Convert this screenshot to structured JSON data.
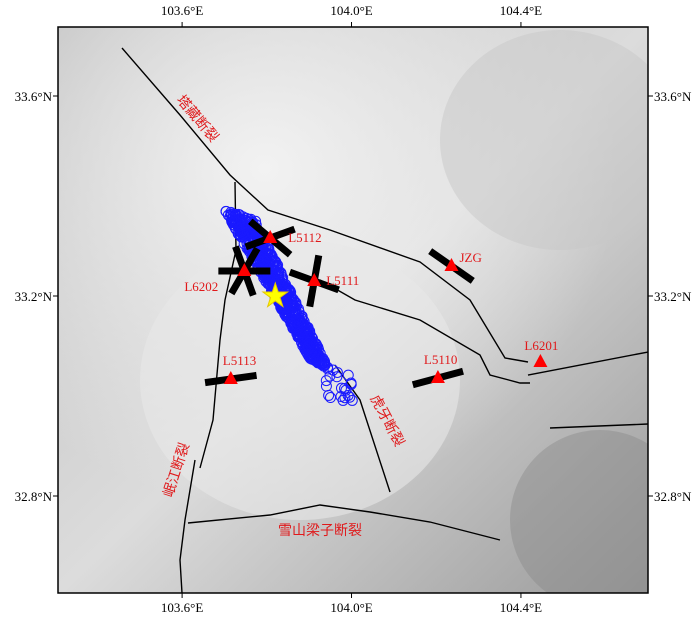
{
  "map": {
    "xlim": [
      103.307,
      104.7
    ],
    "ylim": [
      32.606,
      33.738
    ],
    "lon_ticks": [
      {
        "value": 103.6,
        "label": "103.6°E"
      },
      {
        "value": 104.0,
        "label": "104.0°E"
      },
      {
        "value": 104.4,
        "label": "104.4°E"
      }
    ],
    "lat_ticks": [
      {
        "value": 33.6,
        "label": "33.6°N"
      },
      {
        "value": 33.2,
        "label": "33.2°N"
      },
      {
        "value": 32.8,
        "label": "32.8°N"
      }
    ],
    "stations": [
      {
        "label": "L5112",
        "lon": 103.808,
        "lat": 33.316
      },
      {
        "label": "L6202",
        "lon": 103.747,
        "lat": 33.25
      },
      {
        "label": "L5111",
        "lon": 103.912,
        "lat": 33.23
      },
      {
        "label": "JZG",
        "lon": 104.236,
        "lat": 33.26
      },
      {
        "label": "L6201",
        "lon": 104.446,
        "lat": 33.068
      },
      {
        "label": "L5110",
        "lon": 104.204,
        "lat": 33.036
      },
      {
        "label": "L5113",
        "lon": 103.715,
        "lat": 33.034
      }
    ],
    "epicenter": {
      "lon": 103.82,
      "lat": 33.2
    },
    "faults": [
      "塔藏断裂",
      "虎牙断裂",
      "岷江断裂",
      "雪山梁子断裂"
    ]
  }
}
